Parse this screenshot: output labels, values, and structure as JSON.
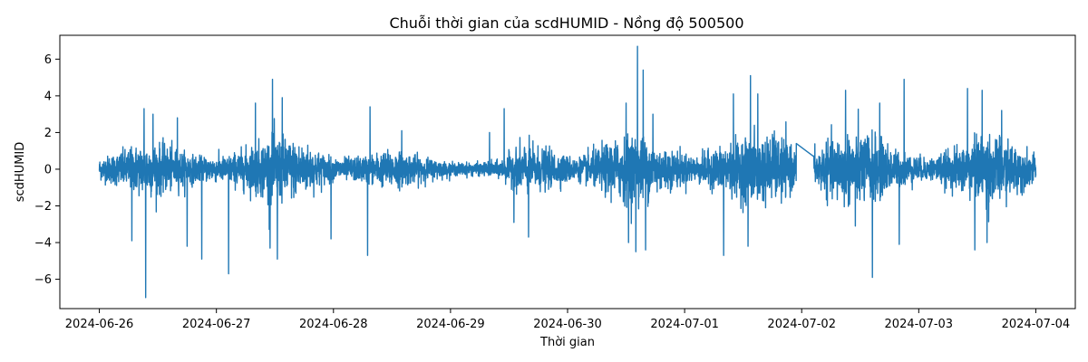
{
  "chart_data": {
    "type": "line",
    "title": "Chuỗi thời gian của scdHUMID - Nồng độ 500500",
    "xlabel": "Thời gian",
    "ylabel": "scdHUMID",
    "x_ticks": [
      "2024-06-26",
      "2024-06-27",
      "2024-06-28",
      "2024-06-29",
      "2024-06-30",
      "2024-07-01",
      "2024-07-02",
      "2024-07-03",
      "2024-07-04"
    ],
    "y_ticks": [
      -6,
      -4,
      -2,
      0,
      2,
      4,
      6
    ],
    "xlim": [
      "2024-06-25 15:54",
      "2024-07-04 08:06"
    ],
    "ylim": [
      -7.6,
      7.3
    ],
    "grid": false,
    "legend": "none",
    "line_color": "#1f77b4",
    "series": [
      {
        "x_start": "2024-06-26 00:00",
        "x_end": "2024-07-04 00:00",
        "gap": {
          "start": "2024-07-01 22:55",
          "end": "2024-07-02 02:30",
          "level": -0.05
        },
        "envelope": {
          "times": [
            "2024-06-26 00:00",
            "2024-06-26 05:00",
            "2024-06-26 10:00",
            "2024-06-26 14:00",
            "2024-06-26 20:00",
            "2024-06-27 02:00",
            "2024-06-27 07:00",
            "2024-06-27 12:00",
            "2024-06-27 18:00",
            "2024-06-28 00:00",
            "2024-06-28 06:00",
            "2024-06-28 12:00",
            "2024-06-28 18:00",
            "2024-06-29 00:00",
            "2024-06-29 06:00",
            "2024-06-29 10:00",
            "2024-06-29 15:00",
            "2024-06-29 20:00",
            "2024-06-30 02:00",
            "2024-06-30 08:00",
            "2024-06-30 14:00",
            "2024-06-30 20:00",
            "2024-07-01 02:00",
            "2024-07-01 08:00",
            "2024-07-01 14:00",
            "2024-07-01 20:00",
            "2024-07-01 22:55",
            "2024-07-02 03:00",
            "2024-07-02 08:00",
            "2024-07-02 14:00",
            "2024-07-02 20:00",
            "2024-07-03 02:00",
            "2024-07-03 08:00",
            "2024-07-03 14:00",
            "2024-07-03 20:00",
            "2024-07-04 00:00"
          ],
          "amplitude": [
            0.5,
            0.9,
            1.3,
            1.1,
            0.6,
            0.6,
            1.1,
            1.6,
            1.2,
            0.5,
            0.6,
            0.9,
            0.6,
            0.3,
            0.3,
            0.4,
            1.2,
            0.9,
            0.5,
            1.2,
            1.7,
            1.0,
            0.6,
            1.1,
            1.6,
            1.5,
            0.8,
            0.9,
            1.6,
            1.7,
            0.8,
            0.5,
            1.0,
            1.7,
            1.1,
            0.6
          ]
        },
        "spikes": [
          {
            "x": "2024-06-26 06:40",
            "y": -3.9
          },
          {
            "x": "2024-06-26 09:30",
            "y": -7.0
          },
          {
            "x": "2024-06-26 09:10",
            "y": 3.3
          },
          {
            "x": "2024-06-26 11:00",
            "y": 3.0
          },
          {
            "x": "2024-06-26 18:00",
            "y": -4.2
          },
          {
            "x": "2024-06-26 21:00",
            "y": -4.9
          },
          {
            "x": "2024-06-26 16:00",
            "y": 2.8
          },
          {
            "x": "2024-06-27 02:30",
            "y": -5.7
          },
          {
            "x": "2024-06-27 08:00",
            "y": 3.6
          },
          {
            "x": "2024-06-27 11:00",
            "y": -4.3
          },
          {
            "x": "2024-06-27 11:30",
            "y": 4.9
          },
          {
            "x": "2024-06-27 12:30",
            "y": -4.9
          },
          {
            "x": "2024-06-27 13:30",
            "y": 3.9
          },
          {
            "x": "2024-06-27 23:30",
            "y": -3.8
          },
          {
            "x": "2024-06-28 07:00",
            "y": -4.7
          },
          {
            "x": "2024-06-28 07:30",
            "y": 3.4
          },
          {
            "x": "2024-06-28 14:00",
            "y": 2.1
          },
          {
            "x": "2024-06-29 08:00",
            "y": 2.0
          },
          {
            "x": "2024-06-29 11:00",
            "y": 3.3
          },
          {
            "x": "2024-06-29 13:00",
            "y": 3.3
          },
          {
            "x": "2024-06-29 16:00",
            "y": -3.7
          },
          {
            "x": "2024-06-29 13:00",
            "y": -2.9
          },
          {
            "x": "2024-06-30 12:00",
            "y": 3.6
          },
          {
            "x": "2024-06-30 12:30",
            "y": -4.0
          },
          {
            "x": "2024-06-30 14:00",
            "y": -4.5
          },
          {
            "x": "2024-06-30 14:20",
            "y": 6.7
          },
          {
            "x": "2024-06-30 15:30",
            "y": 5.4
          },
          {
            "x": "2024-06-30 16:00",
            "y": -4.4
          },
          {
            "x": "2024-06-30 17:30",
            "y": 3.0
          },
          {
            "x": "2024-07-01 08:00",
            "y": -4.7
          },
          {
            "x": "2024-07-01 10:00",
            "y": 4.1
          },
          {
            "x": "2024-07-01 13:00",
            "y": -4.2
          },
          {
            "x": "2024-07-01 13:30",
            "y": 5.1
          },
          {
            "x": "2024-07-01 15:00",
            "y": 4.1
          },
          {
            "x": "2024-07-01 18:00",
            "y": 1.9
          },
          {
            "x": "2024-07-02 00:00",
            "y": 1.4
          },
          {
            "x": "2024-07-02 09:00",
            "y": 4.3
          },
          {
            "x": "2024-07-02 11:00",
            "y": -3.1
          },
          {
            "x": "2024-07-02 14:30",
            "y": -5.9
          },
          {
            "x": "2024-07-02 16:00",
            "y": 3.6
          },
          {
            "x": "2024-07-02 20:00",
            "y": -4.1
          },
          {
            "x": "2024-07-02 21:00",
            "y": 4.9
          },
          {
            "x": "2024-07-03 10:00",
            "y": 4.4
          },
          {
            "x": "2024-07-03 11:30",
            "y": -4.4
          },
          {
            "x": "2024-07-03 13:00",
            "y": 4.3
          },
          {
            "x": "2024-07-03 14:00",
            "y": -4.0
          },
          {
            "x": "2024-07-03 17:00",
            "y": 3.2
          }
        ]
      }
    ]
  }
}
